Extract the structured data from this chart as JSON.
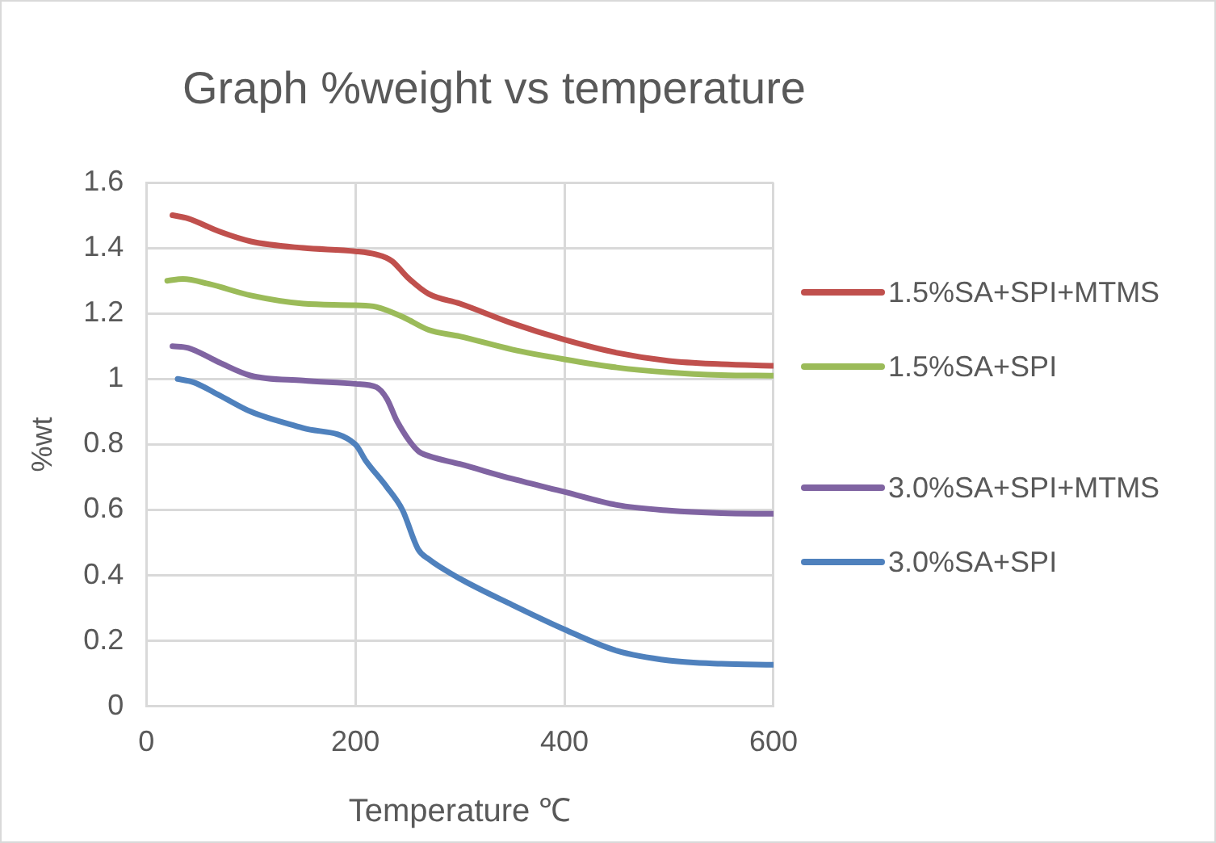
{
  "chart_data": {
    "type": "line",
    "title": "Graph %weight vs temperature",
    "xlabel": "Temperature ℃",
    "ylabel": "%wt",
    "xlim": [
      0,
      600
    ],
    "xticks": [
      0,
      200,
      400,
      600
    ],
    "ylim": [
      0,
      1.6
    ],
    "yticks": [
      0,
      0.2,
      0.4,
      0.6,
      0.8,
      {
        "value": 1,
        "label": "1"
      },
      1.2,
      1.4,
      1.6
    ],
    "grid": true,
    "legend": "right",
    "marker": "none",
    "line_style": "solid",
    "series": [
      {
        "name": "1.5%SA+SPI+MTMS",
        "color": "#c0504d",
        "x": [
          25,
          40,
          70,
          100,
          150,
          200,
          220,
          235,
          250,
          270,
          300,
          350,
          400,
          450,
          500,
          550,
          600
        ],
        "values": [
          1.5,
          1.49,
          1.45,
          1.42,
          1.4,
          1.39,
          1.38,
          1.36,
          1.31,
          1.26,
          1.23,
          1.17,
          1.12,
          1.08,
          1.055,
          1.045,
          1.04
        ]
      },
      {
        "name": "1.5%SA+SPI",
        "color": "#9bbb59",
        "x": [
          20,
          35,
          60,
          100,
          150,
          200,
          220,
          245,
          270,
          300,
          350,
          400,
          450,
          500,
          550,
          600
        ],
        "values": [
          1.3,
          1.305,
          1.29,
          1.255,
          1.23,
          1.225,
          1.22,
          1.19,
          1.15,
          1.13,
          1.09,
          1.06,
          1.035,
          1.02,
          1.012,
          1.01
        ]
      },
      {
        "name": "3.0%SA+SPI+MTMS",
        "color": "#8064a2",
        "x": [
          25,
          40,
          70,
          100,
          150,
          200,
          220,
          230,
          240,
          260,
          270,
          300,
          350,
          400,
          450,
          500,
          550,
          600
        ],
        "values": [
          1.1,
          1.095,
          1.05,
          1.01,
          0.995,
          0.985,
          0.975,
          0.94,
          0.87,
          0.78,
          0.765,
          0.74,
          0.695,
          0.655,
          0.615,
          0.598,
          0.59,
          0.588
        ]
      },
      {
        "name": "3.0%SA+SPI",
        "color": "#4f81bd",
        "x": [
          30,
          45,
          70,
          100,
          150,
          200,
          210,
          230,
          245,
          260,
          270,
          300,
          350,
          400,
          450,
          500,
          550,
          600
        ],
        "values": [
          1.0,
          0.99,
          0.95,
          0.9,
          0.85,
          0.8,
          0.75,
          0.67,
          0.6,
          0.48,
          0.45,
          0.39,
          0.31,
          0.235,
          0.17,
          0.14,
          0.13,
          0.127
        ]
      }
    ]
  }
}
